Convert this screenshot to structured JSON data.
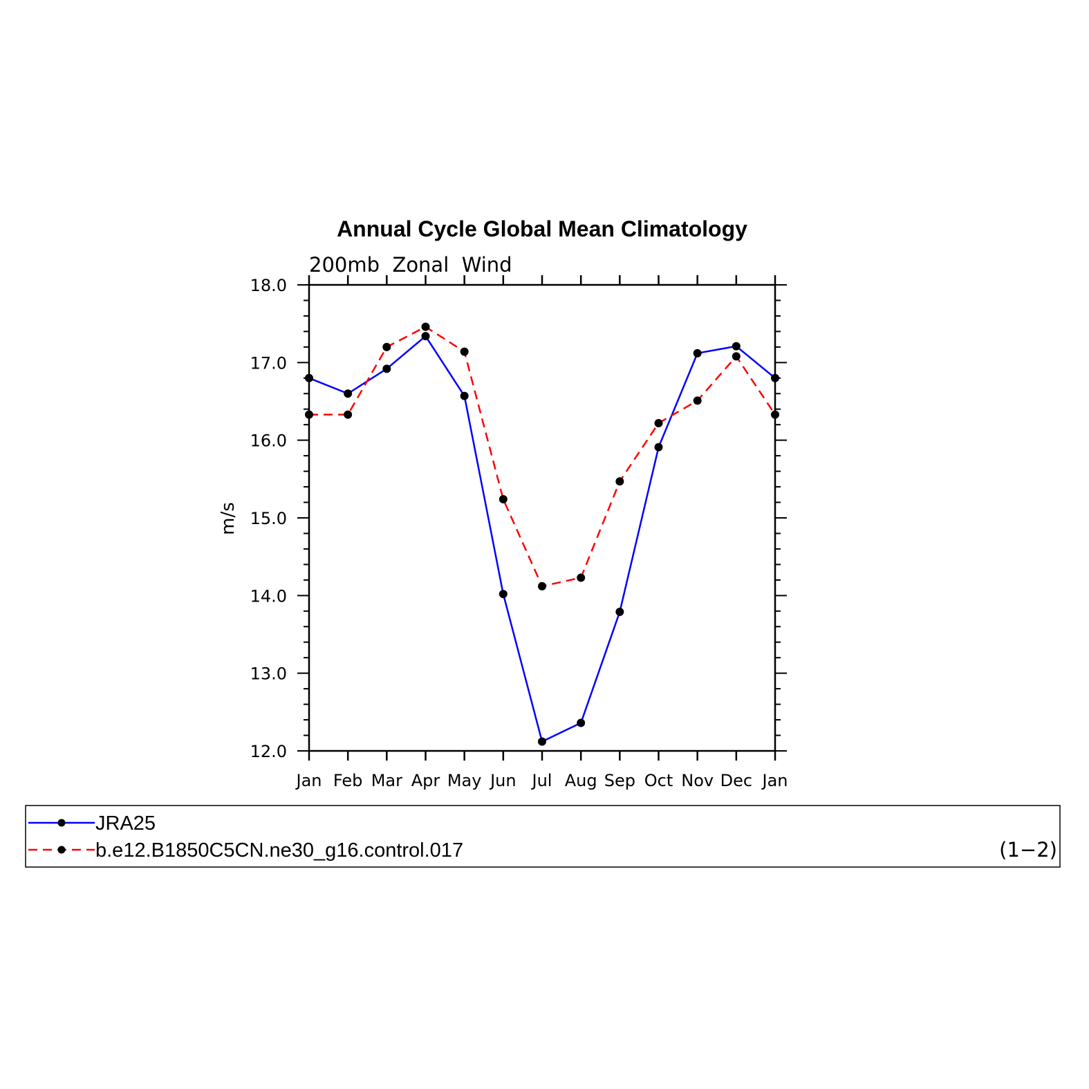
{
  "chart_data": {
    "type": "line",
    "title": "Annual Cycle Global Mean Climatology",
    "subtitle": "200mb  Zonal  Wind",
    "ylabel": "m/s",
    "xlabel": "",
    "categories": [
      "Jan",
      "Feb",
      "Mar",
      "Apr",
      "May",
      "Jun",
      "Jul",
      "Aug",
      "Sep",
      "Oct",
      "Nov",
      "Dec",
      "Jan"
    ],
    "ylim": [
      12.0,
      18.0
    ],
    "yticks": [
      "12.0",
      "13.0",
      "14.0",
      "15.0",
      "16.0",
      "17.0",
      "18.0"
    ],
    "grid": false,
    "legend_position": "bottom",
    "series": [
      {
        "name": "JRA25",
        "color": "#0000ff",
        "dash": "solid",
        "values": [
          16.8,
          16.6,
          16.92,
          17.34,
          16.57,
          14.02,
          12.12,
          12.36,
          13.79,
          15.91,
          17.12,
          17.21,
          16.8
        ]
      },
      {
        "name": "b.e12.B1850C5CN.ne30_g16.control.017",
        "color": "#ff0000",
        "dash": "dashed",
        "values": [
          16.33,
          16.33,
          17.2,
          17.46,
          17.14,
          15.24,
          14.12,
          14.23,
          15.47,
          16.22,
          16.51,
          17.08,
          16.33
        ]
      }
    ],
    "panel_label": "(1−2)"
  }
}
